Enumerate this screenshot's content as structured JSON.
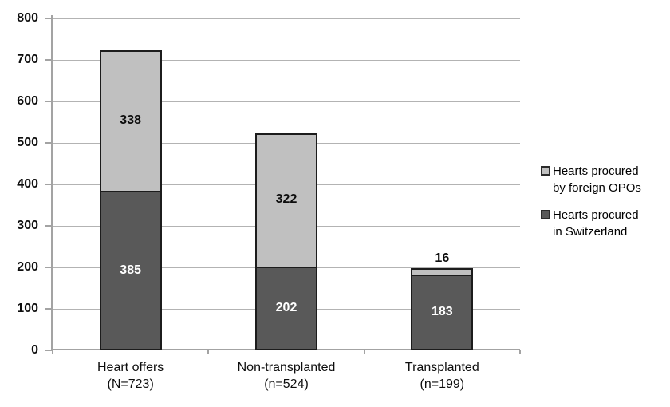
{
  "chart_data": {
    "type": "bar",
    "stacked": true,
    "title": "",
    "xlabel": "",
    "ylabel": "",
    "ylim": [
      0,
      800
    ],
    "yticks": [
      0,
      100,
      200,
      300,
      400,
      500,
      600,
      700,
      800
    ],
    "grid": true,
    "legend_position": "right",
    "categories": [
      [
        "Heart offers",
        "(N=723)"
      ],
      [
        "Non-transplanted",
        "(n=524)"
      ],
      [
        "Transplanted",
        "(n=199)"
      ]
    ],
    "totals": [
      723,
      524,
      199
    ],
    "series": [
      {
        "name": "Hearts procured in Switzerland",
        "legend_lines": [
          "Hearts procured",
          "in Switzerland"
        ],
        "color": "#595959",
        "label_color": "#ffffff",
        "values": [
          385,
          202,
          183
        ]
      },
      {
        "name": "Hearts procured by foreign OPOs",
        "legend_lines": [
          "Hearts procured",
          "by foreign OPOs"
        ],
        "color": "#c0c0c0",
        "label_color": "#0d0d0d",
        "values": [
          338,
          322,
          16
        ]
      }
    ],
    "bar_border_color": "#1c1c1c"
  }
}
